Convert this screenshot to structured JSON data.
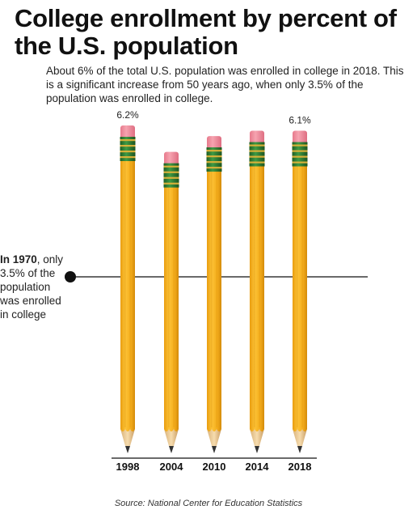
{
  "title": "College enrollment by percent of the U.S. population",
  "subtitle": "About 6% of the total U.S. population was enrolled in college in 2018. This is a significant increase from 50 years ago, when only 3.5% of the population was enrolled in college.",
  "note": {
    "bold": "In 1970",
    "rest": ", only 3.5% of the population was enrolled in college"
  },
  "source": "Source: National Center for Education Statistics",
  "colors": {
    "pencil_body": "#f7b21a",
    "pencil_ridge": "#d8900c",
    "eraser": "#f08a9a",
    "ferrule": "#2e7d32",
    "wood": "#f3d6a0",
    "lead": "#333333",
    "reference_line": "#111111"
  },
  "chart_data": {
    "type": "bar",
    "style": "pencil pictograph",
    "categories": [
      "1998",
      "2004",
      "2010",
      "2014",
      "2018"
    ],
    "values": [
      6.2,
      5.7,
      6.0,
      6.1,
      6.1
    ],
    "value_labels": [
      "6.2%",
      "",
      "",
      "",
      "6.1%"
    ],
    "reference": {
      "label": "In 1970",
      "value": 3.5
    },
    "ylim": [
      0,
      6.2
    ],
    "grid": false,
    "legend": "none"
  }
}
